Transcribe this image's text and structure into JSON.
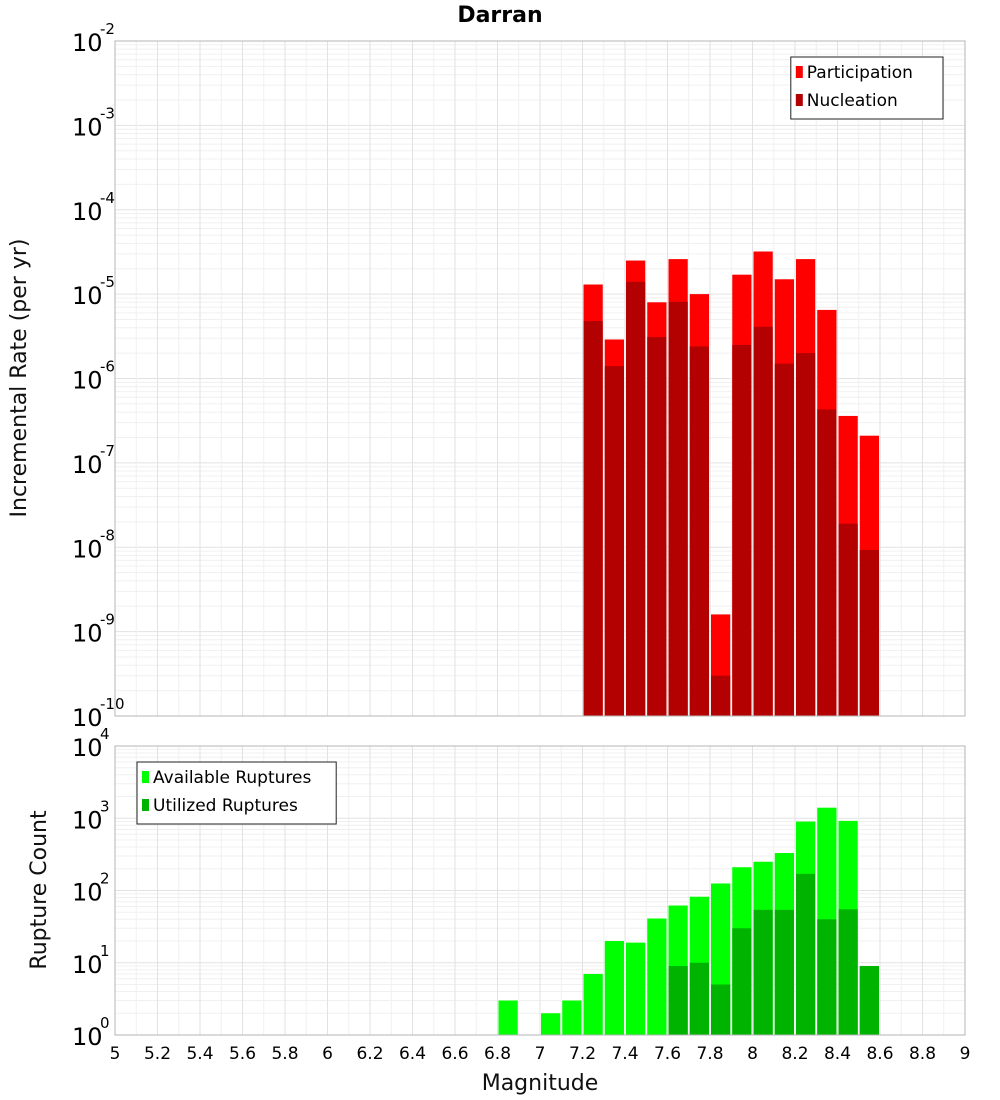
{
  "chart_data": [
    {
      "type": "bar",
      "title": "Darran",
      "ylabel": "Incremental Rate (per yr)",
      "yscale": "log",
      "ylim_exp": [
        -10,
        -2
      ],
      "xlim": [
        5,
        9
      ],
      "grid": true,
      "legend_position": "top-right",
      "x": [
        7.25,
        7.35,
        7.45,
        7.55,
        7.65,
        7.75,
        7.85,
        7.95,
        8.05,
        8.15,
        8.25,
        8.35,
        8.45,
        8.55
      ],
      "series": [
        {
          "name": "Participation",
          "color": "#ff0000",
          "values": [
            1.3e-05,
            2.9e-06,
            2.5e-05,
            8e-06,
            2.6e-05,
            1e-05,
            1.6e-09,
            1.7e-05,
            3.2e-05,
            1.5e-05,
            2.6e-05,
            6.5e-06,
            3.6e-07,
            2.1e-07
          ]
        },
        {
          "name": "Nucleation",
          "color": "#b30000",
          "values": [
            4.8e-06,
            1.4e-06,
            1.4e-05,
            3.1e-06,
            8.1e-06,
            2.4e-06,
            3e-10,
            2.5e-06,
            4.1e-06,
            1.5e-06,
            2e-06,
            4.3e-07,
            1.9e-08,
            9.3e-09
          ]
        }
      ]
    },
    {
      "type": "bar",
      "xlabel": "Magnitude",
      "ylabel": "Rupture Count",
      "yscale": "log",
      "ylim_exp": [
        0,
        4
      ],
      "xlim": [
        5,
        9
      ],
      "grid": true,
      "legend_position": "top-left",
      "x": [
        6.85,
        7.05,
        7.15,
        7.25,
        7.35,
        7.45,
        7.55,
        7.65,
        7.75,
        7.85,
        7.95,
        8.05,
        8.15,
        8.25,
        8.35,
        8.45,
        8.55
      ],
      "series": [
        {
          "name": "Available Ruptures",
          "color": "#00ff00",
          "values": [
            3,
            2,
            3,
            7,
            20,
            19,
            41,
            62,
            82,
            125,
            210,
            250,
            330,
            900,
            1400,
            920,
            9
          ]
        },
        {
          "name": "Utilized Ruptures",
          "color": "#00b300",
          "values": [
            null,
            null,
            null,
            1,
            1,
            1,
            1,
            9,
            10,
            5,
            30,
            54,
            54,
            170,
            40,
            55,
            9
          ]
        }
      ]
    }
  ],
  "x_ticks": [
    "5",
    "5.2",
    "5.4",
    "5.6",
    "5.8",
    "6",
    "6.2",
    "6.4",
    "6.6",
    "6.8",
    "7",
    "7.2",
    "7.4",
    "7.6",
    "7.8",
    "8",
    "8.2",
    "8.4",
    "8.6",
    "8.8",
    "9"
  ],
  "top_y_ticks": [
    {
      "base": "10",
      "exp": "-2"
    },
    {
      "base": "10",
      "exp": "-3"
    },
    {
      "base": "10",
      "exp": "-4"
    },
    {
      "base": "10",
      "exp": "-5"
    },
    {
      "base": "10",
      "exp": "-6"
    },
    {
      "base": "10",
      "exp": "-7"
    },
    {
      "base": "10",
      "exp": "-8"
    },
    {
      "base": "10",
      "exp": "-9"
    },
    {
      "base": "10",
      "exp": "-10"
    }
  ],
  "bottom_y_ticks": [
    {
      "base": "10",
      "exp": "4"
    },
    {
      "base": "10",
      "exp": "3"
    },
    {
      "base": "10",
      "exp": "2"
    },
    {
      "base": "10",
      "exp": "1"
    },
    {
      "base": "10",
      "exp": "0"
    }
  ]
}
